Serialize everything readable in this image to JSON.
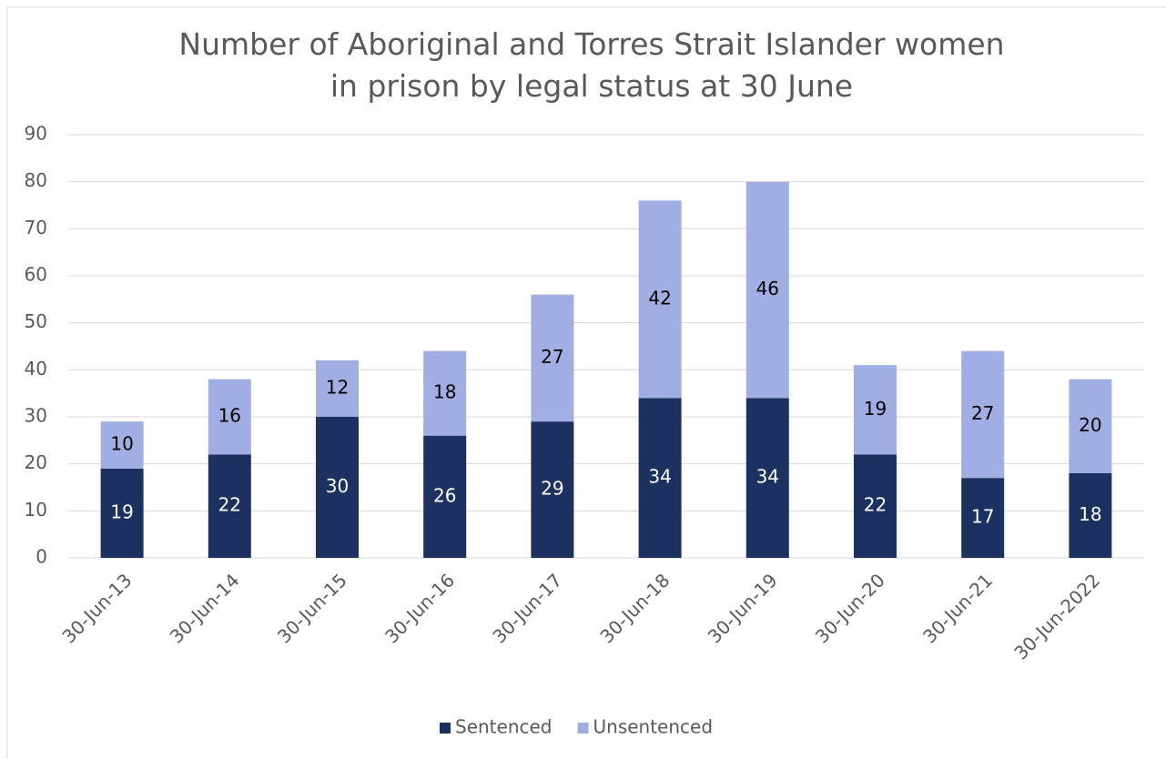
{
  "chart_data": {
    "type": "stacked_bar",
    "title": "Number of Aboriginal and Torres Strait Islander women in prison by legal status at 30 June",
    "categories": [
      "30-Jun-13",
      "30-Jun-14",
      "30-Jun-15",
      "30-Jun-16",
      "30-Jun-17",
      "30-Jun-18",
      "30-Jun-19",
      "30-Jun-20",
      "30-Jun-21",
      "30-Jun-2022"
    ],
    "series": [
      {
        "name": "Sentenced",
        "color": "#1c3160",
        "values": [
          19,
          22,
          30,
          26,
          29,
          34,
          34,
          22,
          17,
          18
        ]
      },
      {
        "name": "Unsentenced",
        "color": "#a1aee3",
        "values": [
          10,
          16,
          12,
          18,
          27,
          42,
          46,
          19,
          27,
          20
        ]
      }
    ],
    "ylim": [
      0,
      90
    ],
    "yticks": [
      0,
      10,
      20,
      30,
      40,
      50,
      60,
      70,
      80,
      90
    ],
    "grid": true,
    "legend": "bottom"
  }
}
